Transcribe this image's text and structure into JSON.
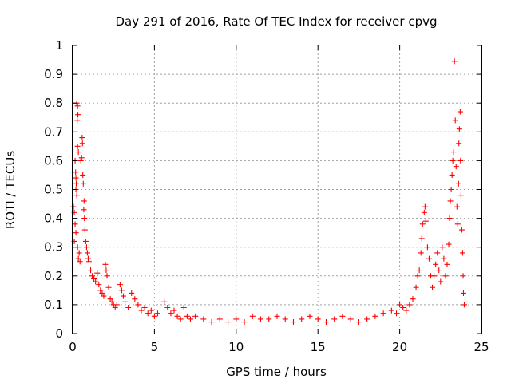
{
  "chart_data": {
    "type": "scatter",
    "title": "Day 291 of 2016, Rate Of TEC Index for receiver cpvg",
    "xlabel": "GPS time / hours",
    "ylabel": "ROTI / TECUs",
    "xlim": [
      0,
      25
    ],
    "ylim": [
      0,
      1
    ],
    "xticks": [
      "0",
      "5",
      "10",
      "15",
      "20",
      "25"
    ],
    "yticks": [
      "0",
      "0.1",
      "0.2",
      "0.3",
      "0.4",
      "0.5",
      "0.6",
      "0.7",
      "0.8",
      "0.9",
      "1"
    ],
    "grid": true,
    "marker": "+",
    "color": "#ff0000",
    "series": [
      {
        "points": [
          [
            0.05,
            0.44
          ],
          [
            0.1,
            0.42
          ],
          [
            0.15,
            0.6
          ],
          [
            0.18,
            0.56
          ],
          [
            0.2,
            0.54
          ],
          [
            0.22,
            0.52
          ],
          [
            0.25,
            0.8
          ],
          [
            0.3,
            0.79
          ],
          [
            0.32,
            0.76
          ],
          [
            0.28,
            0.74
          ],
          [
            0.3,
            0.65
          ],
          [
            0.35,
            0.63
          ],
          [
            0.2,
            0.5
          ],
          [
            0.25,
            0.48
          ],
          [
            0.15,
            0.38
          ],
          [
            0.2,
            0.35
          ],
          [
            0.1,
            0.32
          ],
          [
            0.3,
            0.3
          ],
          [
            0.4,
            0.28
          ],
          [
            0.35,
            0.26
          ],
          [
            0.45,
            0.25
          ],
          [
            0.5,
            0.6
          ],
          [
            0.55,
            0.61
          ],
          [
            0.58,
            0.68
          ],
          [
            0.6,
            0.66
          ],
          [
            0.62,
            0.55
          ],
          [
            0.65,
            0.52
          ],
          [
            0.7,
            0.46
          ],
          [
            0.68,
            0.43
          ],
          [
            0.72,
            0.4
          ],
          [
            0.75,
            0.36
          ],
          [
            0.8,
            0.32
          ],
          [
            0.85,
            0.3
          ],
          [
            0.9,
            0.28
          ],
          [
            0.95,
            0.26
          ],
          [
            1.0,
            0.25
          ],
          [
            1.1,
            0.22
          ],
          [
            1.2,
            0.2
          ],
          [
            1.3,
            0.19
          ],
          [
            1.4,
            0.18
          ],
          [
            1.5,
            0.21
          ],
          [
            1.6,
            0.17
          ],
          [
            1.7,
            0.15
          ],
          [
            1.8,
            0.14
          ],
          [
            1.9,
            0.13
          ],
          [
            2.0,
            0.24
          ],
          [
            2.05,
            0.22
          ],
          [
            2.1,
            0.2
          ],
          [
            2.2,
            0.16
          ],
          [
            2.3,
            0.12
          ],
          [
            2.4,
            0.11
          ],
          [
            2.5,
            0.1
          ],
          [
            2.6,
            0.09
          ],
          [
            2.7,
            0.1
          ],
          [
            2.9,
            0.17
          ],
          [
            3.0,
            0.15
          ],
          [
            3.1,
            0.13
          ],
          [
            3.2,
            0.11
          ],
          [
            3.4,
            0.09
          ],
          [
            3.6,
            0.14
          ],
          [
            3.8,
            0.12
          ],
          [
            4.0,
            0.1
          ],
          [
            4.2,
            0.08
          ],
          [
            4.4,
            0.09
          ],
          [
            4.6,
            0.07
          ],
          [
            4.8,
            0.08
          ],
          [
            5.0,
            0.06
          ],
          [
            5.2,
            0.07
          ],
          [
            5.6,
            0.11
          ],
          [
            5.8,
            0.09
          ],
          [
            6.0,
            0.07
          ],
          [
            6.2,
            0.08
          ],
          [
            6.4,
            0.06
          ],
          [
            6.6,
            0.05
          ],
          [
            6.8,
            0.09
          ],
          [
            7.0,
            0.06
          ],
          [
            7.2,
            0.05
          ],
          [
            7.5,
            0.06
          ],
          [
            8.0,
            0.05
          ],
          [
            8.5,
            0.04
          ],
          [
            9.0,
            0.05
          ],
          [
            9.5,
            0.04
          ],
          [
            10.0,
            0.05
          ],
          [
            10.5,
            0.04
          ],
          [
            11.0,
            0.06
          ],
          [
            11.5,
            0.05
          ],
          [
            12.0,
            0.05
          ],
          [
            12.5,
            0.06
          ],
          [
            13.0,
            0.05
          ],
          [
            13.5,
            0.04
          ],
          [
            14.0,
            0.05
          ],
          [
            14.5,
            0.06
          ],
          [
            15.0,
            0.05
          ],
          [
            15.5,
            0.04
          ],
          [
            16.0,
            0.05
          ],
          [
            16.5,
            0.06
          ],
          [
            17.0,
            0.05
          ],
          [
            17.5,
            0.04
          ],
          [
            18.0,
            0.05
          ],
          [
            18.5,
            0.06
          ],
          [
            19.0,
            0.07
          ],
          [
            19.5,
            0.08
          ],
          [
            19.8,
            0.07
          ],
          [
            20.0,
            0.1
          ],
          [
            20.2,
            0.09
          ],
          [
            20.4,
            0.08
          ],
          [
            20.6,
            0.1
          ],
          [
            20.8,
            0.12
          ],
          [
            21.0,
            0.16
          ],
          [
            21.1,
            0.2
          ],
          [
            21.2,
            0.22
          ],
          [
            21.3,
            0.28
          ],
          [
            21.35,
            0.33
          ],
          [
            21.4,
            0.38
          ],
          [
            21.5,
            0.42
          ],
          [
            21.55,
            0.44
          ],
          [
            21.6,
            0.39
          ],
          [
            21.7,
            0.3
          ],
          [
            21.8,
            0.26
          ],
          [
            21.9,
            0.2
          ],
          [
            22.0,
            0.16
          ],
          [
            22.1,
            0.2
          ],
          [
            22.2,
            0.24
          ],
          [
            22.3,
            0.28
          ],
          [
            22.4,
            0.22
          ],
          [
            22.5,
            0.18
          ],
          [
            22.6,
            0.3
          ],
          [
            22.7,
            0.26
          ],
          [
            22.8,
            0.2
          ],
          [
            22.9,
            0.24
          ],
          [
            23.0,
            0.31
          ],
          [
            23.05,
            0.4
          ],
          [
            23.1,
            0.46
          ],
          [
            23.15,
            0.5
          ],
          [
            23.2,
            0.55
          ],
          [
            23.25,
            0.6
          ],
          [
            23.3,
            0.63
          ],
          [
            23.35,
            0.945
          ],
          [
            23.4,
            0.74
          ],
          [
            23.45,
            0.58
          ],
          [
            23.5,
            0.44
          ],
          [
            23.55,
            0.38
          ],
          [
            23.6,
            0.52
          ],
          [
            23.62,
            0.66
          ],
          [
            23.65,
            0.71
          ],
          [
            23.7,
            0.77
          ],
          [
            23.72,
            0.6
          ],
          [
            23.75,
            0.48
          ],
          [
            23.8,
            0.36
          ],
          [
            23.85,
            0.28
          ],
          [
            23.88,
            0.2
          ],
          [
            23.9,
            0.14
          ],
          [
            23.95,
            0.1
          ]
        ]
      }
    ]
  }
}
